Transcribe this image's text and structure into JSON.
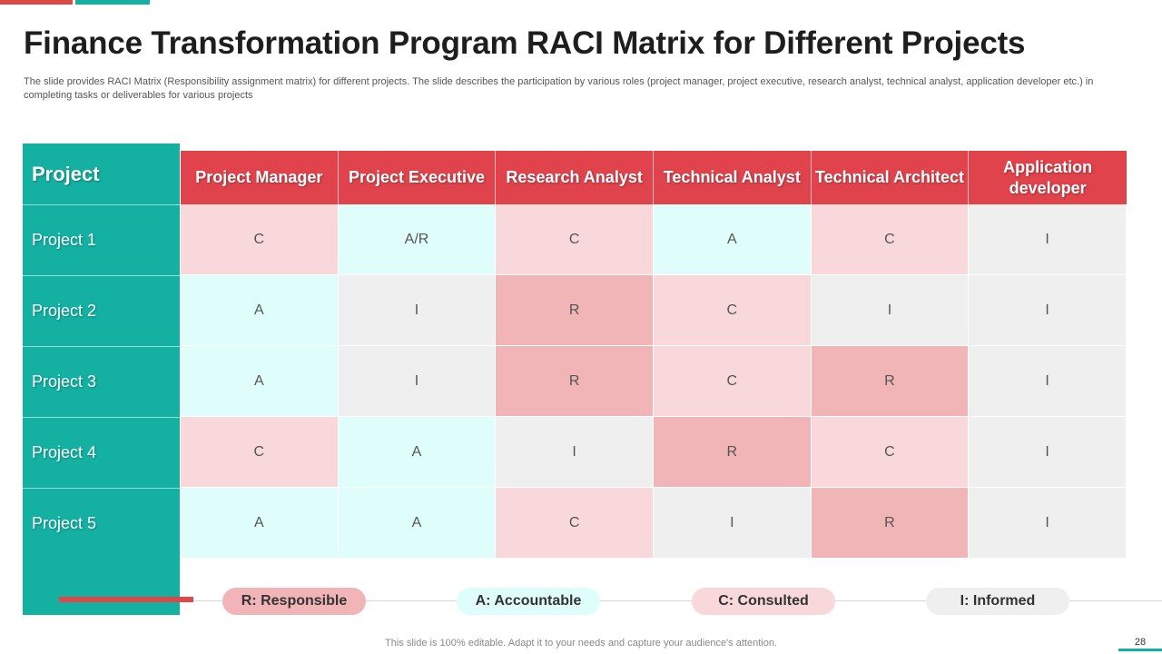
{
  "title": "Finance Transformation Program RACI Matrix for Different Projects",
  "subtitle": "The slide provides RACI Matrix  (Responsibility assignment matrix) for different projects. The slide describes the participation by various roles (project manager, project executive, research analyst, technical analyst, application developer etc.) in completing tasks or deliverables for various projects",
  "matrix": {
    "corner_label": "Project",
    "columns": [
      "Project Manager",
      "Project Executive",
      "Research Analyst",
      "Technical Analyst",
      "Technical Architect",
      "Application developer"
    ],
    "rows": [
      {
        "label": "Project 1",
        "values": [
          "C",
          "A/R",
          "C",
          "A",
          "C",
          "I"
        ]
      },
      {
        "label": "Project 2",
        "values": [
          "A",
          "I",
          "R",
          "C",
          "I",
          "I"
        ]
      },
      {
        "label": "Project 3",
        "values": [
          "A",
          "I",
          "R",
          "C",
          "R",
          "I"
        ]
      },
      {
        "label": "Project 4",
        "values": [
          "C",
          "A",
          "I",
          "R",
          "C",
          "I"
        ]
      },
      {
        "label": "Project 5",
        "values": [
          "A",
          "A",
          "C",
          "I",
          "R",
          "I"
        ]
      }
    ]
  },
  "legend": {
    "responsible": "R: Responsible",
    "accountable": "A: Accountable",
    "consulted": "C: Consulted",
    "informed": "I: Informed"
  },
  "footer": "This slide is 100% editable. Adapt it to your needs and capture your audience's attention.",
  "page_number": "28",
  "colors": {
    "accent_red": "#e0434c",
    "accent_teal": "#14b1a3",
    "responsible": "#f1b4b7",
    "accountable": "#dffdfb",
    "consulted": "#f8d8da",
    "informed": "#efefef"
  }
}
